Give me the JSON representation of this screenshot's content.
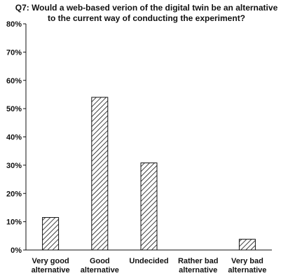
{
  "chart_data": {
    "type": "bar",
    "title_lines": [
      "Q7: Would a web-based verion of the digital twin be an alternative",
      "to the current way of conducting the experiment?"
    ],
    "categories": [
      [
        "Very good",
        "alternative"
      ],
      [
        "Good",
        "alternative"
      ],
      [
        "Undecided"
      ],
      [
        "Rather bad",
        "alternative"
      ],
      [
        "Very bad",
        "alternative"
      ]
    ],
    "values": [
      11.5,
      54,
      30.8,
      0,
      3.8
    ],
    "ylim": [
      0,
      80
    ],
    "yticks": [
      {
        "value": 0,
        "label": "0%"
      },
      {
        "value": 10,
        "label": "10%"
      },
      {
        "value": 20,
        "label": "20%"
      },
      {
        "value": 30,
        "label": "30%"
      },
      {
        "value": 40,
        "label": "40%"
      },
      {
        "value": 50,
        "label": "50%"
      },
      {
        "value": 60,
        "label": "60%"
      },
      {
        "value": 70,
        "label": "70%"
      },
      {
        "value": 80,
        "label": "80%"
      }
    ],
    "grid": false,
    "bar_fill": "diagonal-hatch",
    "colors": {
      "bar_stroke": "#111111",
      "axis": "#111111",
      "hatch": "#111111"
    }
  }
}
